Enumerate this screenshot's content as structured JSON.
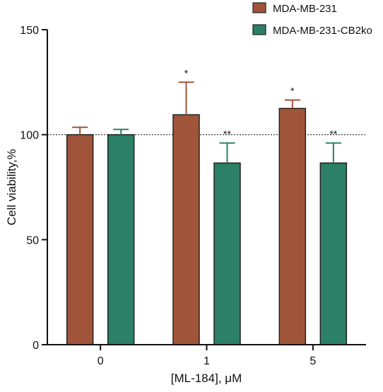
{
  "chart_data": {
    "type": "bar",
    "title": "",
    "xlabel": "[ML-184], μM",
    "ylabel": "Cell viability,%",
    "ylim": [
      0,
      150
    ],
    "yticks": [
      0,
      50,
      100,
      150
    ],
    "categories": [
      "0",
      "1",
      "5"
    ],
    "reference_line": {
      "value": 100,
      "style": "dotted"
    },
    "legend_position": "top-right",
    "series": [
      {
        "name": "MDA-MB-231",
        "color": "#a0553a",
        "values": [
          100,
          109.5,
          112.5
        ],
        "errors": [
          3.5,
          15.5,
          4.0
        ],
        "significance": [
          "",
          "*",
          "*"
        ]
      },
      {
        "name": "MDA-MB-231-CB2ko",
        "color": "#2b8067",
        "values": [
          100,
          86.5,
          86.5
        ],
        "errors": [
          2.5,
          9.5,
          9.5
        ],
        "significance": [
          "",
          "**",
          "**"
        ]
      }
    ]
  }
}
